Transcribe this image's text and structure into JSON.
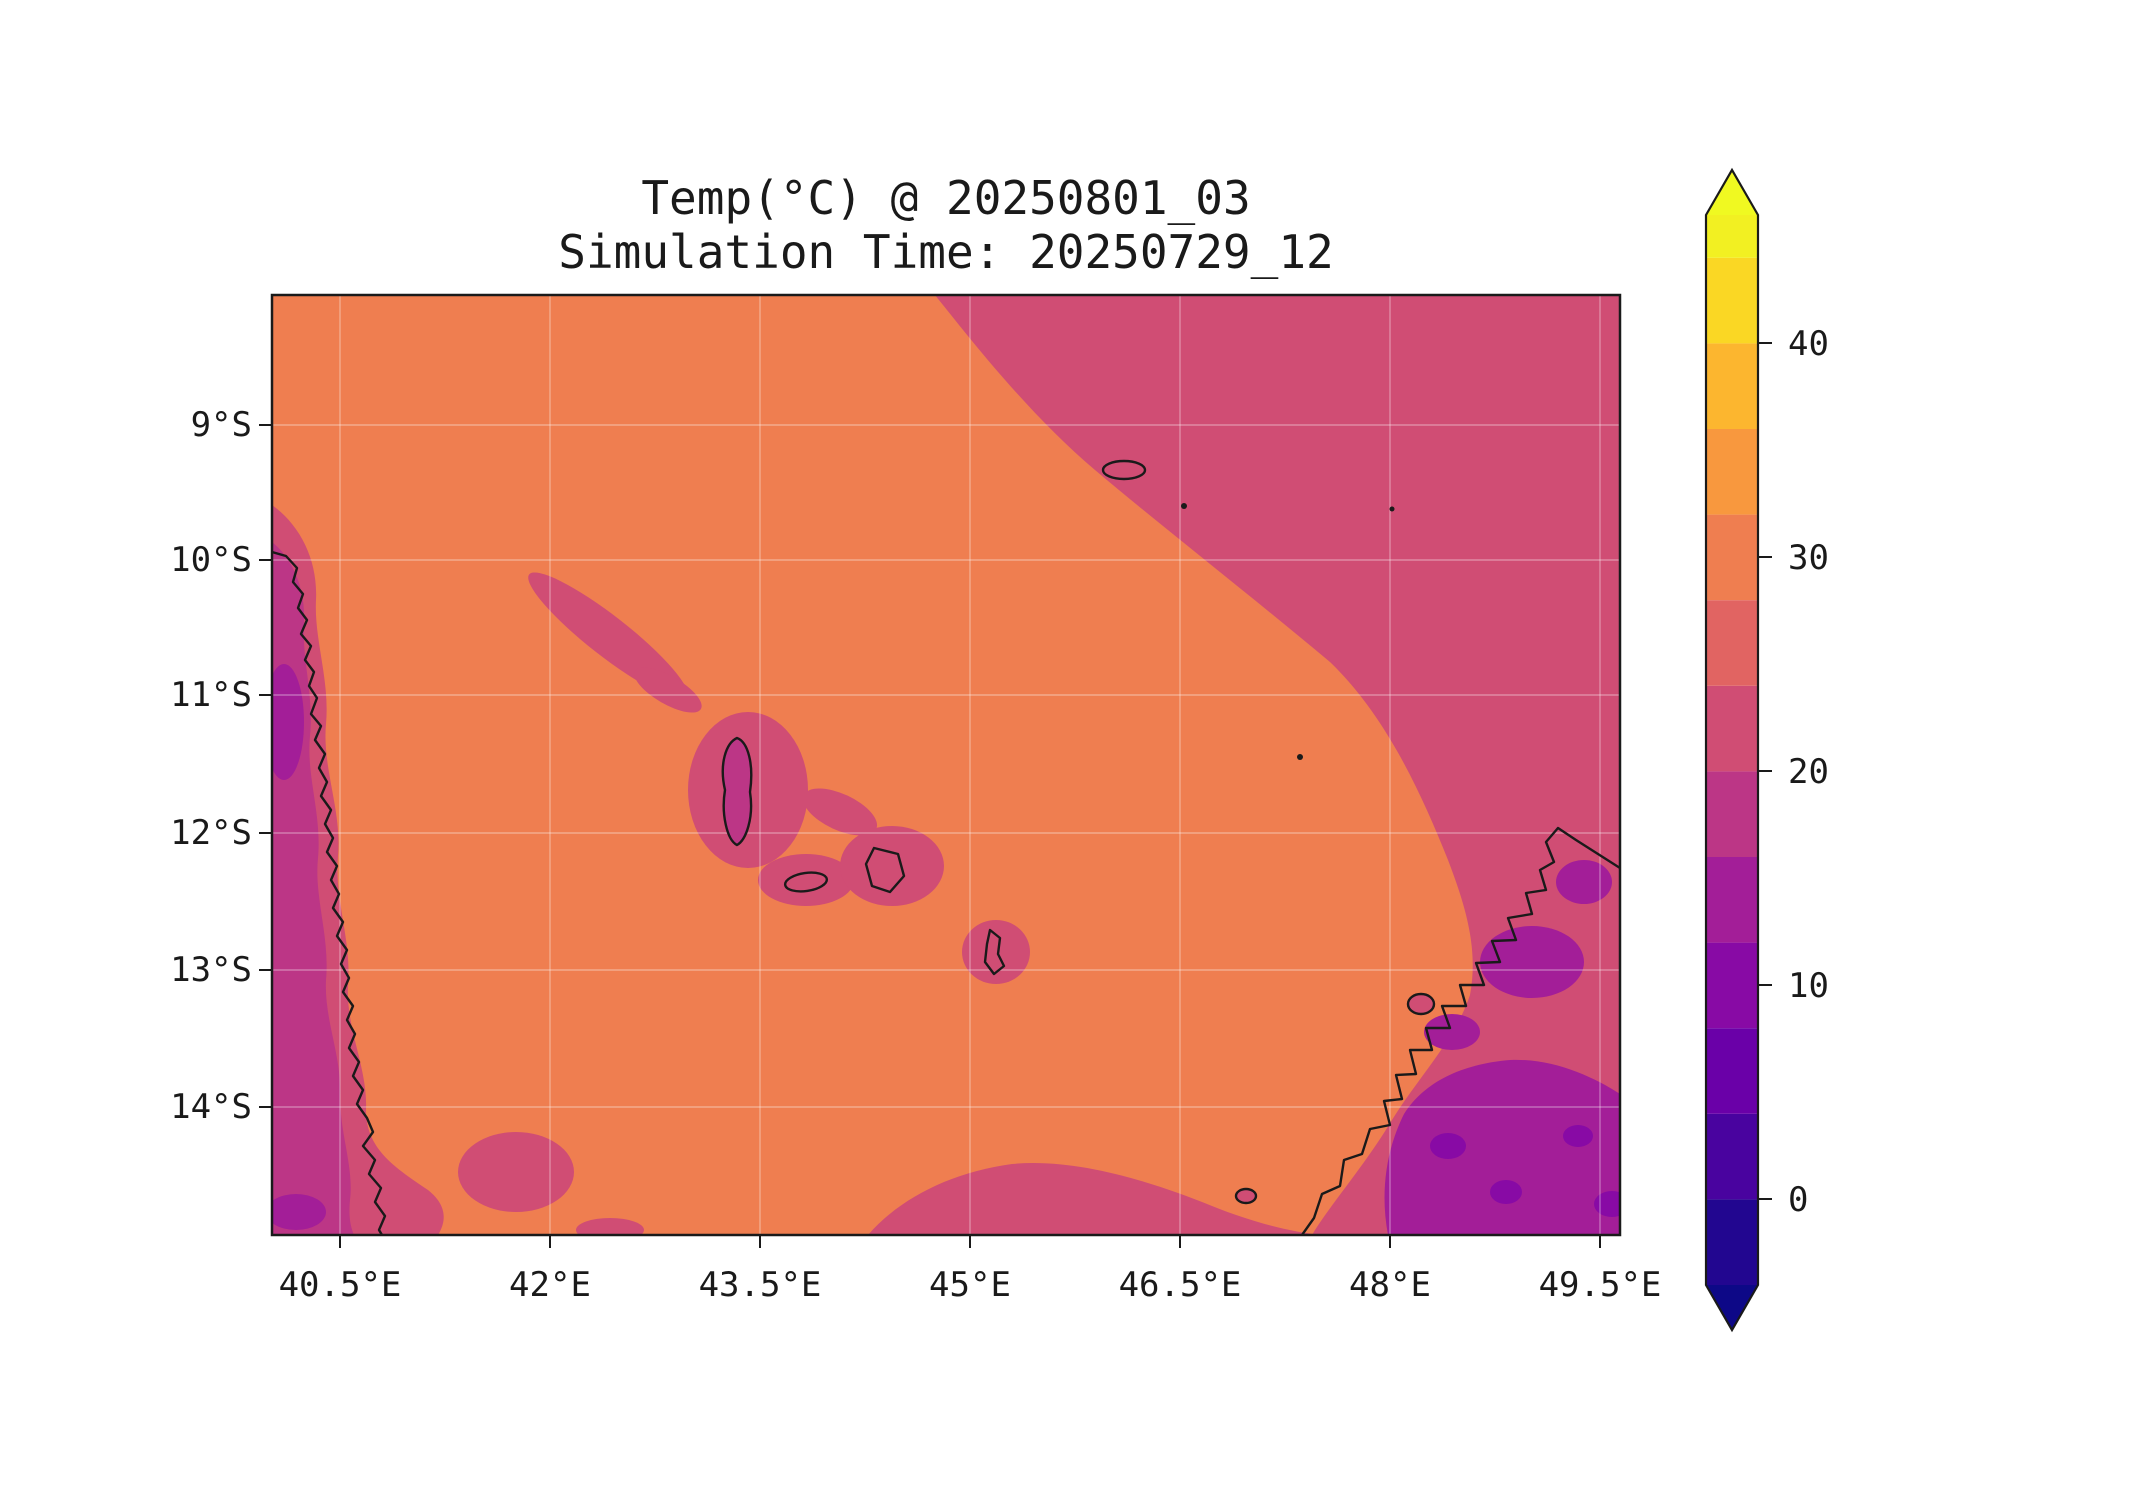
{
  "palette": {
    "ocean": "#ef7e50",
    "rose": "#d04d74",
    "salmon": "#e16462",
    "magenta": "#bc3686",
    "purple": "#a31e98",
    "deep_purple": "#880aa5",
    "coastline": "#1a1a1a",
    "grid": "rgba(255,255,255,0.35)",
    "axis": "#1a1a1a"
  },
  "chart_data": {
    "type": "heatmap",
    "variable": "Temp(°C)",
    "title": "Temp(°C) @ 20250801_03",
    "subtitle": "Simulation Time: 20250729_12",
    "valid_time": "20250801_03",
    "simulation_time": "20250729_12",
    "x_tick_labels": [
      "40.5°E",
      "42°E",
      "43.5°E",
      "45°E",
      "46.5°E",
      "48°E",
      "49.5°E"
    ],
    "y_tick_labels": [
      "9°S",
      "10°S",
      "11°S",
      "12°S",
      "13°S",
      "14°S"
    ],
    "x_axis": {
      "kind": "longitude",
      "range_deg_east": [
        40.0,
        49.6
      ]
    },
    "y_axis": {
      "kind": "latitude",
      "range_deg_south": [
        8.1,
        14.9
      ]
    },
    "grid": true,
    "colorbar": {
      "orientation": "vertical",
      "position": "right",
      "extend": "both",
      "tick_labels": [
        "40",
        "30",
        "20",
        "10",
        "0"
      ],
      "tick_values": [
        40,
        30,
        20,
        10,
        0
      ],
      "vmin": -4,
      "vmax": 46,
      "under_color": "#0d0887",
      "over_color": "#f0f921",
      "bands": [
        {
          "min": -4,
          "max": 0,
          "color": "#220690"
        },
        {
          "min": 0,
          "max": 4,
          "color": "#49039f"
        },
        {
          "min": 4,
          "max": 8,
          "color": "#6a00a8"
        },
        {
          "min": 8,
          "max": 12,
          "color": "#880aa5"
        },
        {
          "min": 12,
          "max": 16,
          "color": "#a31e98"
        },
        {
          "min": 16,
          "max": 20,
          "color": "#bc3686"
        },
        {
          "min": 20,
          "max": 24,
          "color": "#d04d74"
        },
        {
          "min": 24,
          "max": 28,
          "color": "#e16462"
        },
        {
          "min": 28,
          "max": 32,
          "color": "#ef7e50"
        },
        {
          "min": 32,
          "max": 36,
          "color": "#f8983e"
        },
        {
          "min": 36,
          "max": 40,
          "color": "#fcb62f"
        },
        {
          "min": 40,
          "max": 44,
          "color": "#fad724"
        },
        {
          "min": 44,
          "max": 46,
          "color": "#f2f022"
        }
      ]
    },
    "field_regions": [
      {
        "area": "open ocean, centre and west of domain (Mozambique Channel)",
        "approx_temp_c": 29,
        "color": "#ef7e50"
      },
      {
        "area": "north-east ocean sector",
        "approx_temp_c": 22,
        "color": "#d04d74"
      },
      {
        "area": "East African coastal fringe (west edge of map)",
        "approx_temp_c": 18,
        "color": "#bc3686"
      },
      {
        "area": "cooler pockets on East African coast",
        "approx_temp_c": 14,
        "color": "#a31e98"
      },
      {
        "area": "Comoros islands and surrounding water",
        "approx_temp_c": 22,
        "color": "#d04d74"
      },
      {
        "area": "north-west Madagascar coastal land",
        "approx_temp_c": 21,
        "color": "#d04d74"
      },
      {
        "area": "north Madagascar highlands",
        "approx_temp_c": 13,
        "color": "#a31e98"
      },
      {
        "area": "highest Madagascar terrain pockets",
        "approx_temp_c": 10,
        "color": "#880aa5"
      }
    ],
    "map_features": [
      "East African coastline (left edge)",
      "Comoros archipelago: Grande Comore, Mohéli, Anjouan, Mayotte",
      "Aldabra atoll (upper right)",
      "small island specks (Assumption, Glorioso)",
      "northern Madagascar coastline with Nosy Be (lower right)"
    ]
  }
}
